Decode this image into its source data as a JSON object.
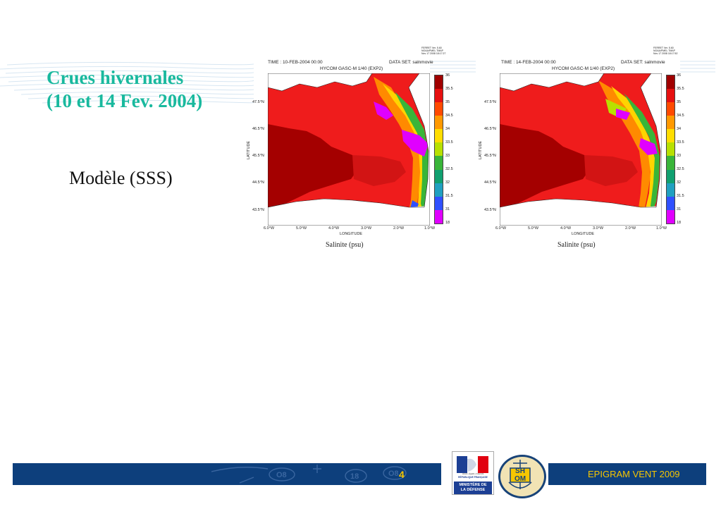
{
  "slide": {
    "title_line1": "Crues hivernales",
    "title_line2": "(10 et 14 Fev. 2004)",
    "subtitle": "Modèle (SSS)",
    "page_number": "4",
    "footer_text": "EPIGRAM VENT 2009",
    "colors": {
      "title": "#19b99e",
      "footer_bar": "#0d3f7c",
      "footer_text": "#f6c600"
    }
  },
  "maps": [
    {
      "time": "TIME : 10-FEB-2004 00:00",
      "model": "HYCOM GASC-M 1/40 (EXP2)",
      "dataset": "DATA SET: salnmovie",
      "stamp": "FERRET Ver. 5.60\nNOAA/PMEL TMAP\nNov 17 2008 18:17:27",
      "caption": "Salinite (psu)"
    },
    {
      "time": "TIME : 14-FEB-2004 00:00",
      "model": "HYCOM GASC-M 1/40 (EXP2)",
      "dataset": "DATA SET: salnmovie",
      "stamp": "FERRET Ver. 5.60\nNOAA/PMEL TMAP\nNov 17 2008 18:17:52",
      "caption": "Salinite (psu)"
    }
  ],
  "axes": {
    "xlabel": "LONGITUDE",
    "ylabel": "LATITUDE",
    "x_ticks": [
      "6.0°W",
      "5.0°W",
      "4.0°W",
      "3.0°W",
      "2.0°W",
      "1.0°W"
    ],
    "y_ticks": [
      "47.5°N",
      "46.5°N",
      "45.5°N",
      "44.5°N",
      "43.5°N"
    ]
  },
  "colorbar": {
    "labels": [
      "36",
      "35.5",
      "35",
      "34.5",
      "34",
      "33.5",
      "33",
      "32.5",
      "32",
      "31.5",
      "31",
      "18"
    ],
    "colors": [
      "#a00000",
      "#e61010",
      "#ff4a00",
      "#ff9900",
      "#ffdd00",
      "#b8e000",
      "#39b539",
      "#10a070",
      "#20a0c0",
      "#3050ff",
      "#e000ff"
    ]
  },
  "logos": {
    "ministry_text": "MINISTÈRE DE LA DÉFENSE",
    "republic_text": "RÉPUBLIQUE FRANÇAISE",
    "republic_motto": "Liberté • Égalité • Fraternité",
    "shom_text": "SH OM"
  }
}
